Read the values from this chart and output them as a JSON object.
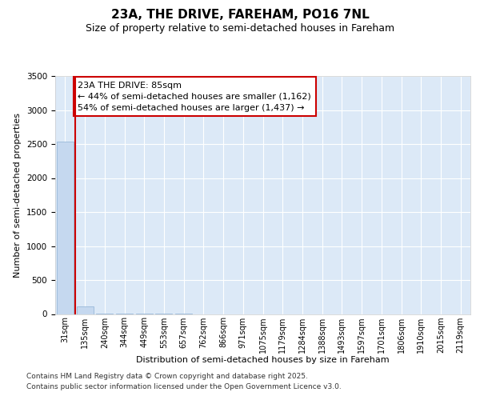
{
  "title": "23A, THE DRIVE, FAREHAM, PO16 7NL",
  "subtitle": "Size of property relative to semi-detached houses in Fareham",
  "xlabel": "Distribution of semi-detached houses by size in Fareham",
  "ylabel": "Number of semi-detached properties",
  "bar_labels": [
    "31sqm",
    "135sqm",
    "240sqm",
    "344sqm",
    "449sqm",
    "553sqm",
    "657sqm",
    "762sqm",
    "866sqm",
    "971sqm",
    "1075sqm",
    "1179sqm",
    "1284sqm",
    "1388sqm",
    "1493sqm",
    "1597sqm",
    "1701sqm",
    "1806sqm",
    "1910sqm",
    "2015sqm",
    "2119sqm"
  ],
  "bar_values": [
    2540,
    115,
    8,
    3,
    2,
    1,
    1,
    0,
    0,
    0,
    0,
    0,
    0,
    0,
    0,
    0,
    0,
    0,
    0,
    0,
    0
  ],
  "bar_color": "#c5d8ef",
  "bar_edge_color": "#a0bedd",
  "property_line_color": "#cc0000",
  "property_line_x": 0.5,
  "annotation_line1": "23A THE DRIVE: 85sqm",
  "annotation_line2": "← 44% of semi-detached houses are smaller (1,162)",
  "annotation_line3": "54% of semi-detached houses are larger (1,437) →",
  "annotation_box_color": "#ffffff",
  "annotation_box_edge": "#cc0000",
  "ylim": [
    0,
    3500
  ],
  "yticks": [
    0,
    500,
    1000,
    1500,
    2000,
    2500,
    3000,
    3500
  ],
  "grid_color": "#ffffff",
  "plot_bg_color": "#dce9f7",
  "fig_bg_color": "#ffffff",
  "footer_line1": "Contains HM Land Registry data © Crown copyright and database right 2025.",
  "footer_line2": "Contains public sector information licensed under the Open Government Licence v3.0.",
  "title_fontsize": 11,
  "subtitle_fontsize": 9,
  "xlabel_fontsize": 8,
  "ylabel_fontsize": 8,
  "tick_fontsize": 7.5,
  "xtick_fontsize": 7,
  "footer_fontsize": 6.5,
  "annot_fontsize": 8
}
